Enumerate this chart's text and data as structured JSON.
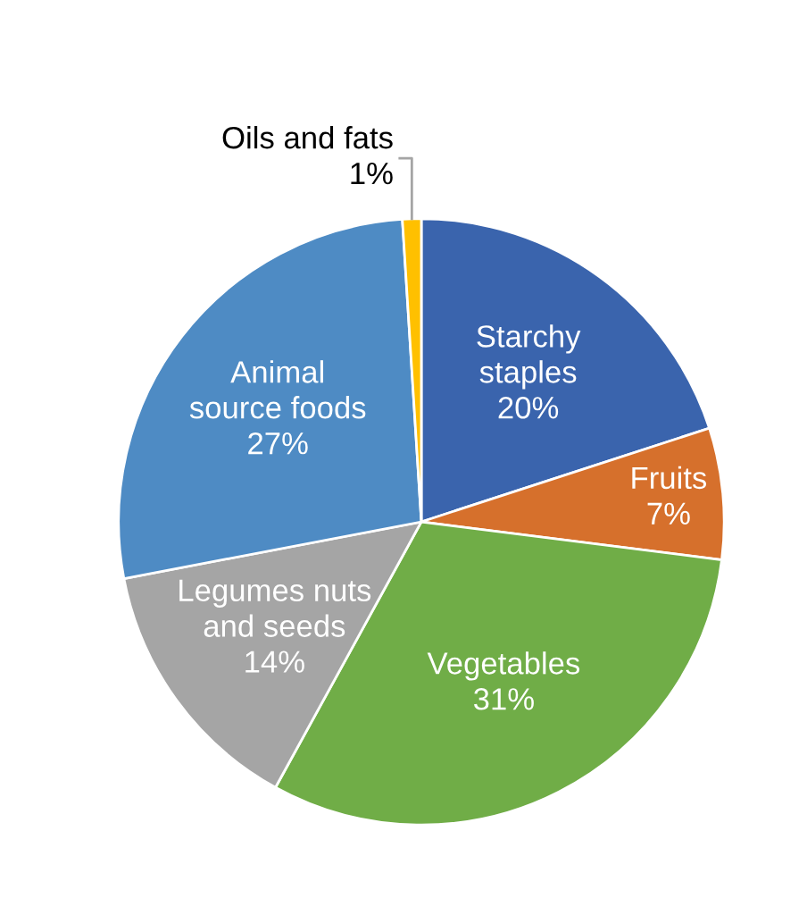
{
  "chart_data": {
    "type": "pie",
    "categories": [
      "Starchy\nstaples",
      "Fruits",
      "Vegetables",
      "Legumes nuts\nand seeds",
      "Animal\nsource foods",
      "Oils and fats"
    ],
    "values": [
      20,
      7,
      31,
      14,
      27,
      1
    ],
    "value_labels": [
      "20%",
      "7%",
      "31%",
      "14%",
      "27%",
      "1%"
    ],
    "colors": [
      "#3a64ad",
      "#d6702c",
      "#70ad47",
      "#a5a5a5",
      "#4e8bc4",
      "#ffc000"
    ],
    "legend": false
  }
}
